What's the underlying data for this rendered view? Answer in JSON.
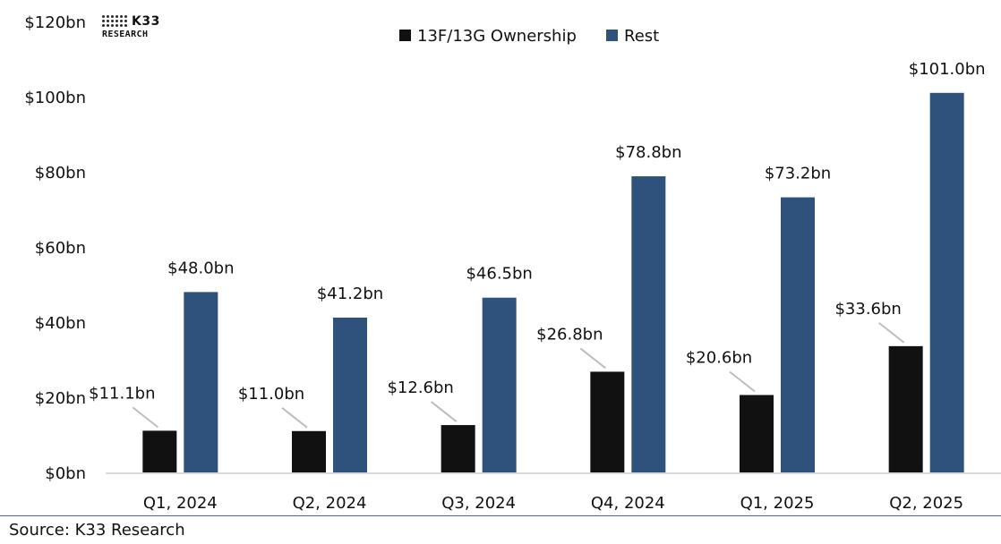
{
  "chart_data": {
    "type": "bar",
    "categories": [
      "Q1, 2024",
      "Q2, 2024",
      "Q3, 2024",
      "Q4, 2024",
      "Q1, 2025",
      "Q2, 2025"
    ],
    "series": [
      {
        "name": "13F/13G Ownership",
        "color": "#111111",
        "values": [
          11.1,
          11.0,
          12.6,
          26.8,
          20.6,
          33.6
        ],
        "labels": [
          "$11.1bn",
          "$11.0bn",
          "$12.6bn",
          "$26.8bn",
          "$20.6bn",
          "$33.6bn"
        ]
      },
      {
        "name": "Rest",
        "color": "#2f527d",
        "values": [
          48.0,
          41.2,
          46.5,
          78.8,
          73.2,
          101.0
        ],
        "labels": [
          "$48.0bn",
          "$41.2bn",
          "$46.5bn",
          "$78.8bn",
          "$73.2bn",
          "$101.0bn"
        ]
      }
    ],
    "ylim": [
      0,
      120
    ],
    "yticks": [
      0,
      20,
      40,
      60,
      80,
      100,
      120
    ],
    "ytick_labels": [
      "$0bn",
      "$20bn",
      "$40bn",
      "$60bn",
      "$80bn",
      "$100bn",
      "$120bn"
    ],
    "legend_position": "top-center",
    "grid": false
  },
  "logo": {
    "name": "K33",
    "subtitle": "RESEARCH"
  },
  "source": "Source: K33 Research"
}
